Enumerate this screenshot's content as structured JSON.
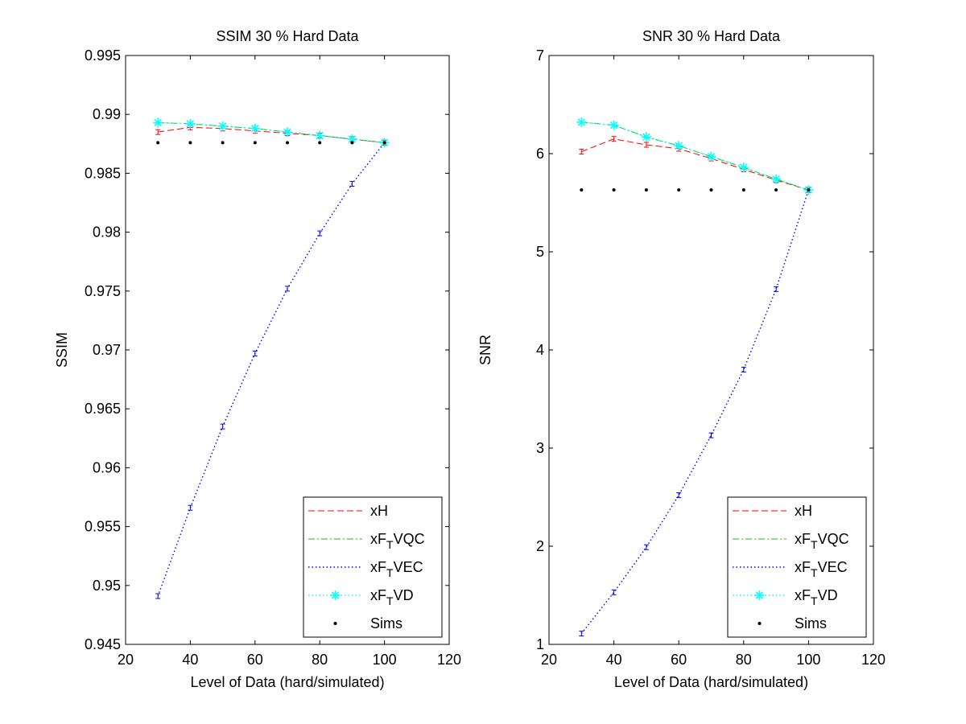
{
  "chart_data": [
    {
      "type": "line",
      "title": "SSIM 30 % Hard Data",
      "xlabel": "Level of Data (hard/simulated)",
      "ylabel": "SSIM",
      "xlim": [
        20,
        120
      ],
      "ylim": [
        0.945,
        0.995
      ],
      "xticks": [
        20,
        40,
        60,
        80,
        100,
        120
      ],
      "xtick_labels": [
        "20",
        "40",
        "60",
        "80",
        "100",
        "120"
      ],
      "yticks": [
        0.945,
        0.95,
        0.955,
        0.96,
        0.965,
        0.97,
        0.975,
        0.98,
        0.985,
        0.99,
        0.995
      ],
      "ytick_labels": [
        "0.945",
        "0.95",
        "0.955",
        "0.96",
        "0.965",
        "0.97",
        "0.975",
        "0.98",
        "0.985",
        "0.99",
        "0.995"
      ],
      "grid": false,
      "legend_position": "bottom-right",
      "x": [
        30,
        40,
        50,
        60,
        70,
        80,
        90,
        100
      ],
      "series": [
        {
          "name": "xH",
          "style": "dashed",
          "color": "#ff0000",
          "marker": "errorbar",
          "values": [
            0.9885,
            0.9889,
            0.9888,
            0.9886,
            0.9884,
            0.9882,
            0.9879,
            0.9876
          ]
        },
        {
          "name": "xF_TVQC",
          "style": "dashdot",
          "color": "#00cc00",
          "marker": "none",
          "values": [
            0.9893,
            0.9892,
            0.989,
            0.9888,
            0.9885,
            0.9882,
            0.9879,
            0.9876
          ]
        },
        {
          "name": "xF_TVEC",
          "style": "dotted",
          "color": "#0000ff",
          "marker": "errorbar",
          "values": [
            0.9491,
            0.9566,
            0.9635,
            0.9697,
            0.9752,
            0.9799,
            0.9841,
            0.9876
          ]
        },
        {
          "name": "xF_TVD",
          "style": "dotted",
          "color": "#00ffff",
          "marker": "asterisk",
          "values": [
            0.9893,
            0.9892,
            0.989,
            0.9888,
            0.9885,
            0.9882,
            0.9879,
            0.9876
          ]
        },
        {
          "name": "Sims",
          "style": "none",
          "color": "#000000",
          "marker": "dot",
          "values": [
            0.9876,
            0.9876,
            0.9876,
            0.9876,
            0.9876,
            0.9876,
            0.9876,
            0.9876
          ]
        }
      ]
    },
    {
      "type": "line",
      "title": "SNR 30 % Hard Data",
      "xlabel": "Level of Data (hard/simulated)",
      "ylabel": "SNR",
      "xlim": [
        20,
        120
      ],
      "ylim": [
        1,
        7
      ],
      "xticks": [
        20,
        40,
        60,
        80,
        100,
        120
      ],
      "xtick_labels": [
        "20",
        "40",
        "60",
        "80",
        "100",
        "120"
      ],
      "yticks": [
        1,
        2,
        3,
        4,
        5,
        6,
        7
      ],
      "ytick_labels": [
        "1",
        "2",
        "3",
        "4",
        "5",
        "6",
        "7"
      ],
      "grid": false,
      "legend_position": "bottom-right",
      "x": [
        30,
        40,
        50,
        60,
        70,
        80,
        90,
        100
      ],
      "series": [
        {
          "name": "xH",
          "style": "dashed",
          "color": "#ff0000",
          "marker": "errorbar",
          "values": [
            6.02,
            6.15,
            6.09,
            6.05,
            5.95,
            5.84,
            5.73,
            5.63
          ]
        },
        {
          "name": "xF_TVQC",
          "style": "dashdot",
          "color": "#00cc00",
          "marker": "none",
          "values": [
            6.32,
            6.29,
            6.17,
            6.08,
            5.97,
            5.86,
            5.74,
            5.63
          ]
        },
        {
          "name": "xF_TVEC",
          "style": "dotted",
          "color": "#0000ff",
          "marker": "errorbar",
          "values": [
            1.11,
            1.53,
            1.99,
            2.52,
            3.13,
            3.8,
            4.62,
            5.63
          ]
        },
        {
          "name": "xF_TVD",
          "style": "dotted",
          "color": "#00ffff",
          "marker": "asterisk",
          "values": [
            6.32,
            6.29,
            6.17,
            6.08,
            5.97,
            5.86,
            5.74,
            5.63
          ]
        },
        {
          "name": "Sims",
          "style": "none",
          "color": "#000000",
          "marker": "dot",
          "values": [
            5.63,
            5.63,
            5.63,
            5.63,
            5.63,
            5.63,
            5.63,
            5.63
          ]
        }
      ]
    }
  ]
}
